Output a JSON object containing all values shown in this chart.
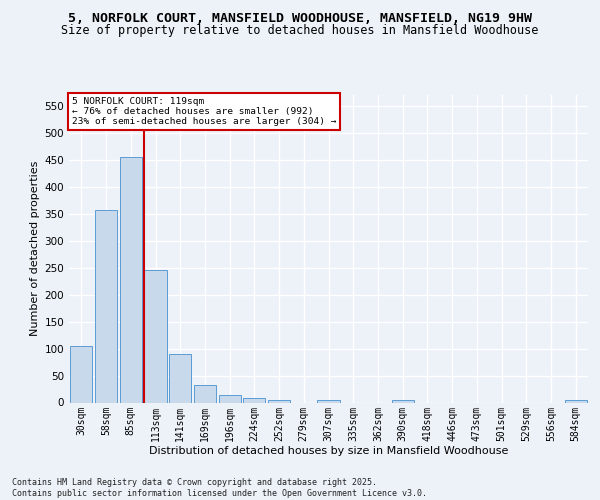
{
  "title": "5, NORFOLK COURT, MANSFIELD WOODHOUSE, MANSFIELD, NG19 9HW",
  "subtitle": "Size of property relative to detached houses in Mansfield Woodhouse",
  "xlabel": "Distribution of detached houses by size in Mansfield Woodhouse",
  "ylabel": "Number of detached properties",
  "categories": [
    "30sqm",
    "58sqm",
    "85sqm",
    "113sqm",
    "141sqm",
    "169sqm",
    "196sqm",
    "224sqm",
    "252sqm",
    "279sqm",
    "307sqm",
    "335sqm",
    "362sqm",
    "390sqm",
    "418sqm",
    "446sqm",
    "473sqm",
    "501sqm",
    "529sqm",
    "556sqm",
    "584sqm"
  ],
  "values": [
    104,
    357,
    456,
    245,
    90,
    32,
    13,
    9,
    5,
    0,
    5,
    0,
    0,
    5,
    0,
    0,
    0,
    0,
    0,
    0,
    5
  ],
  "bar_color": "#c8d9ec",
  "bar_edge_color": "#5b9bd5",
  "vline_index": 3,
  "vline_color": "#cc0000",
  "annotation_line1": "5 NORFOLK COURT: 119sqm",
  "annotation_line2": "← 76% of detached houses are smaller (992)",
  "annotation_line3": "23% of semi-detached houses are larger (304) →",
  "annotation_border_color": "#cc0000",
  "ylim": [
    0,
    570
  ],
  "yticks": [
    0,
    50,
    100,
    150,
    200,
    250,
    300,
    350,
    400,
    450,
    500,
    550
  ],
  "bg_color": "#edf2f9",
  "grid_color": "#ffffff",
  "footer": "Contains HM Land Registry data © Crown copyright and database right 2025.\nContains public sector information licensed under the Open Government Licence v3.0.",
  "title_fontsize": 9.5,
  "subtitle_fontsize": 8.5,
  "ylabel_fontsize": 8,
  "xlabel_fontsize": 8,
  "tick_fontsize": 7,
  "footer_fontsize": 6.0
}
